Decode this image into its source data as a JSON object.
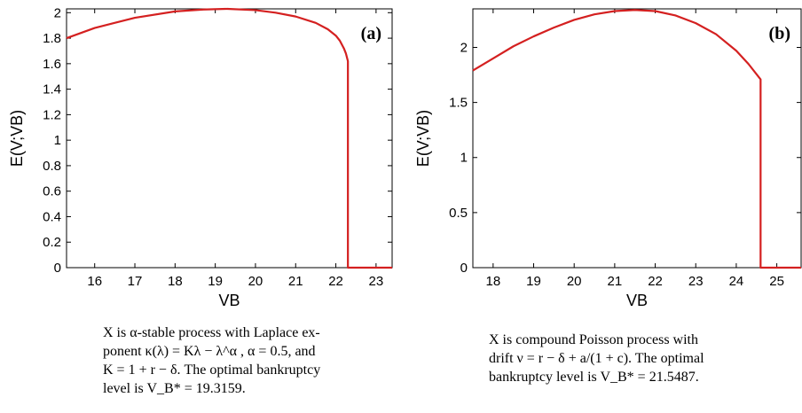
{
  "chart_data": [
    {
      "type": "line",
      "panel_label": "(a)",
      "xlabel": "VB",
      "ylabel": "E(V;VB)",
      "xlim": [
        15.3,
        23.4
      ],
      "ylim": [
        0,
        2.03
      ],
      "xticks": [
        16,
        17,
        18,
        19,
        20,
        21,
        22,
        23
      ],
      "yticks": [
        0,
        0.2,
        0.4,
        0.6,
        0.8,
        1,
        1.2,
        1.4,
        1.6,
        1.8,
        2
      ],
      "xtick_labels": [
        "16",
        "17",
        "18",
        "19",
        "20",
        "21",
        "22",
        "23"
      ],
      "ytick_labels": [
        "0",
        "0.2",
        "0.4",
        "0.6",
        "0.8",
        "1",
        "1.2",
        "1.4",
        "1.6",
        "1.8",
        "2"
      ],
      "grid": false,
      "line_color": "#d42020",
      "x": [
        15.3,
        16.0,
        17.0,
        18.0,
        18.7,
        19.3,
        20.0,
        20.5,
        21.0,
        21.5,
        21.8,
        22.0,
        22.1,
        22.2,
        22.25,
        22.3,
        22.3,
        22.4,
        23.4
      ],
      "y": [
        1.8,
        1.88,
        1.96,
        2.01,
        2.025,
        2.03,
        2.02,
        2.0,
        1.97,
        1.92,
        1.87,
        1.82,
        1.78,
        1.72,
        1.68,
        1.62,
        0,
        0,
        0
      ]
    },
    {
      "type": "line",
      "panel_label": "(b)",
      "xlabel": "VB",
      "ylabel": "E(V;VB)",
      "xlim": [
        17.5,
        25.6
      ],
      "ylim": [
        0,
        2.35
      ],
      "xticks": [
        18,
        19,
        20,
        21,
        22,
        23,
        24,
        25
      ],
      "yticks": [
        0,
        0.5,
        1,
        1.5,
        2
      ],
      "xtick_labels": [
        "18",
        "19",
        "20",
        "21",
        "22",
        "23",
        "24",
        "25"
      ],
      "ytick_labels": [
        "0",
        "0.5",
        "1",
        "1.5",
        "2"
      ],
      "grid": false,
      "line_color": "#d42020",
      "x": [
        17.5,
        18.0,
        18.5,
        19.0,
        19.5,
        20.0,
        20.5,
        21.0,
        21.5,
        22.0,
        22.5,
        23.0,
        23.5,
        24.0,
        24.3,
        24.6,
        24.6,
        25.6
      ],
      "y": [
        1.79,
        1.9,
        2.01,
        2.1,
        2.18,
        2.25,
        2.3,
        2.33,
        2.34,
        2.33,
        2.29,
        2.22,
        2.12,
        1.97,
        1.85,
        1.71,
        0,
        0
      ]
    }
  ],
  "captions": [
    {
      "lines": [
        "X is α-stable process with Laplace ex-",
        "ponent κ(λ) = Kλ − λ^α , α = 0.5, and",
        "K = 1 + r − δ. The optimal bankruptcy",
        "level is V_B* = 19.3159."
      ]
    },
    {
      "lines": [
        "X is compound Poisson process with",
        "drift ν = r − δ + a/(1 + c). The optimal",
        "bankruptcy level is V_B* = 21.5487."
      ]
    }
  ]
}
